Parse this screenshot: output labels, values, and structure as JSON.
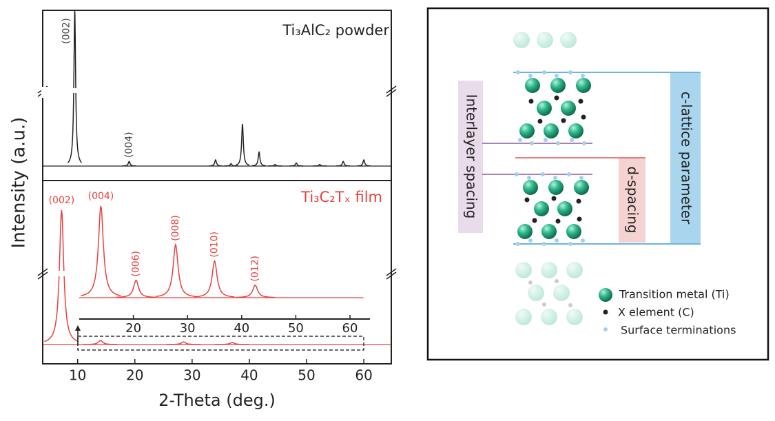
{
  "chart_data": {
    "type": "xrd",
    "x_label": "2-Theta (deg.)",
    "y_label": "Intensity (a.u.)",
    "xlim": [
      3.9,
      64.8
    ],
    "xticks": [
      10,
      20,
      30,
      40,
      50,
      60
    ],
    "panels": [
      {
        "ylim": [
          0,
          100
        ],
        "series": [
          {
            "name": "Ti₃AlC₂ powder",
            "color": "#222222",
            "x": [
              9.5,
              19.0,
              34.1,
              36.8,
              38.8,
              41.7,
              44.5,
              48.2,
              52.3,
              56.4,
              60.0
            ],
            "values": [
              100,
              3,
              4,
              1.5,
              27,
              9,
              1,
              2,
              1,
              3,
              4
            ],
            "labels": [
              "(002)",
              "(004)",
              null,
              null,
              null,
              null,
              null,
              null,
              null,
              null,
              null
            ]
          }
        ]
      },
      {
        "ylim": [
          0,
          100
        ],
        "series": [
          {
            "name": "Ti₃C₂Tₓ film",
            "color": "#e8403f",
            "x": [
              7.2,
              14,
              28.5,
              37
            ],
            "values": [
              100,
              3,
              2,
              1.5
            ],
            "labels": [
              "(002)",
              null,
              null,
              null
            ]
          }
        ],
        "inset": {
          "xlim": [
            10,
            60
          ],
          "xticks": [
            20,
            30,
            40,
            50,
            60
          ],
          "ylim": [
            0,
            100
          ],
          "series": [
            {
              "color": "#e8403f",
              "x": [
                14,
                20.5,
                27.8,
                35,
                42.5
              ],
              "values": [
                95,
                18,
                55,
                38,
                13
              ],
              "labels": [
                "(004)",
                "(006)",
                "(008)",
                "(010)",
                "(012)"
              ]
            }
          ]
        }
      }
    ]
  },
  "diagram": {
    "interlayer": "Interlayer spacing",
    "d_spacing": "d-spacing",
    "c_lattice": "c-lattice parameter",
    "legend": [
      "Transition metal (Ti)",
      "X element (C)",
      "Surface terminations"
    ]
  }
}
